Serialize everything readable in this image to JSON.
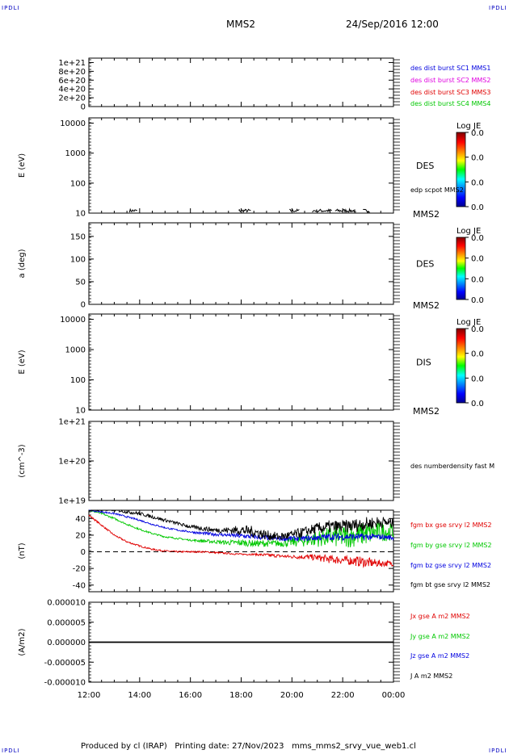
{
  "header": {
    "spacecraft": "MMS2",
    "datetime": "24/Sep/2016 12:00",
    "corner_tl": "IPDLI",
    "corner_tr": "IPDLI",
    "corner_bl": "IPDLI",
    "corner_br": "IPDLI"
  },
  "footer": {
    "produced_by": "Produced by cl (IRAP)",
    "printing_date": "Printing date: 27/Nov/2023",
    "script_name": "mms_mms2_srvy_vue_web1.cl"
  },
  "colors": {
    "red": "#e00000",
    "green": "#00c800",
    "blue": "#0000e0",
    "magenta": "#e000e0",
    "black": "#000000"
  },
  "chart_data": [
    {
      "id": "p1",
      "type": "line",
      "ylabel": "",
      "yticks": [
        "1e+21",
        "8e+20",
        "6e+20",
        "4e+20",
        "2e+20",
        "0"
      ],
      "ylim": [
        0,
        1.1e+21
      ],
      "series": [
        {
          "name": "des dist burst SC1 MMS1",
          "color": "#0000e0"
        },
        {
          "name": "des dist burst SC2 MMS2",
          "color": "#e000e0"
        },
        {
          "name": "des dist burst SC3 MMS3",
          "color": "#e00000"
        },
        {
          "name": "des dist burst SC4 MMS4",
          "color": "#00c800"
        }
      ],
      "zero_line": true
    },
    {
      "id": "p2",
      "type": "spectrogram",
      "ylabel": "E (eV)",
      "yscale": "log",
      "ylim": [
        10,
        15000
      ],
      "yticks": [
        "10000",
        "1000",
        "100",
        "10"
      ],
      "instrument_label": "DES",
      "spacecraft_label": "MMS2",
      "overlay_label": "edp scpot MMS2",
      "colorbar_title": "Log JE",
      "colorbar_ticks": [
        "0.0",
        "0.0",
        "0.0",
        "0.0"
      ],
      "overlay_bursts_hours": [
        [
          13.6,
          13.9
        ],
        [
          17.9,
          18.4
        ],
        [
          19.9,
          20.3
        ],
        [
          20.8,
          21.0
        ],
        [
          21.0,
          21.6
        ],
        [
          21.7,
          22.5
        ],
        [
          22.8,
          23.1
        ]
      ]
    },
    {
      "id": "p3",
      "type": "spectrogram",
      "ylabel": "a (deg)",
      "ylim": [
        0,
        180
      ],
      "yticks": [
        "150",
        "100",
        "50",
        "0"
      ],
      "instrument_label": "DES",
      "spacecraft_label": "MMS2",
      "colorbar_title": "Log JE",
      "colorbar_ticks": [
        "0.0",
        "0.0",
        "0.0",
        "0.0"
      ]
    },
    {
      "id": "p4",
      "type": "spectrogram",
      "ylabel": "E (eV)",
      "yscale": "log",
      "ylim": [
        10,
        15000
      ],
      "yticks": [
        "10000",
        "1000",
        "100",
        "10"
      ],
      "instrument_label": "DIS",
      "spacecraft_label": "MMS2",
      "colorbar_title": "Log JE",
      "colorbar_ticks": [
        "0.0",
        "0.0",
        "0.0",
        "0.0"
      ]
    },
    {
      "id": "p5",
      "type": "line",
      "ylabel": "(cm^-3)",
      "yscale": "log",
      "ylim": [
        1e+19,
        1e+21
      ],
      "yticks": [
        "1e+21",
        "1e+20",
        "1e+19"
      ],
      "series": [
        {
          "name": "des numberdensity fast M",
          "color": "#000000"
        }
      ]
    },
    {
      "id": "p6",
      "type": "line",
      "ylabel": "(nT)",
      "ylim": [
        -48,
        50
      ],
      "yticks": [
        "40",
        "20",
        "0",
        "-20",
        "-40"
      ],
      "zero_line": true,
      "series": [
        {
          "name": "fgm bx gse srvy l2 MMS2",
          "color": "#e00000",
          "x": [
            12.0,
            12.5,
            13.0,
            13.5,
            14.0,
            14.5,
            15.0,
            15.5,
            16.0,
            16.5,
            17.0,
            17.5,
            18.0,
            18.5,
            19.0,
            19.5,
            20.0,
            20.5,
            21.0,
            21.5,
            22.0,
            22.5,
            23.0,
            23.5,
            24.0
          ],
          "y": [
            44,
            32,
            20,
            12,
            7,
            3,
            1,
            0,
            0,
            0,
            -1,
            -2,
            -3,
            -3,
            -4,
            -5,
            -6,
            -6,
            -7,
            -9,
            -10,
            -11,
            -13,
            -14,
            -14
          ],
          "noise": [
            1,
            1,
            1,
            1,
            1,
            1,
            1,
            1,
            1,
            1,
            1,
            1,
            1,
            1,
            2,
            2,
            2,
            3,
            4,
            5,
            5,
            6,
            6,
            4,
            3
          ]
        },
        {
          "name": "fgm by gse srvy l2 MMS2",
          "color": "#00c800",
          "x": [
            12.0,
            12.5,
            13.0,
            13.5,
            14.0,
            14.5,
            15.0,
            15.5,
            16.0,
            16.5,
            17.0,
            17.5,
            18.0,
            18.5,
            19.0,
            19.5,
            20.0,
            20.5,
            21.0,
            21.5,
            22.0,
            22.5,
            23.0,
            23.5,
            24.0
          ],
          "y": [
            50,
            46,
            40,
            33,
            27,
            22,
            18,
            16,
            14,
            13,
            12,
            11,
            11,
            10,
            10,
            10,
            12,
            14,
            16,
            18,
            18,
            20,
            22,
            24,
            24
          ],
          "noise": [
            1,
            1,
            1,
            1,
            1,
            1,
            1,
            1,
            1,
            2,
            2,
            3,
            4,
            4,
            4,
            4,
            6,
            8,
            10,
            12,
            14,
            14,
            14,
            12,
            10
          ]
        },
        {
          "name": "fgm bz gse srvy l2 MMS2",
          "color": "#0000e0",
          "x": [
            12.0,
            12.5,
            13.0,
            13.5,
            14.0,
            14.5,
            15.0,
            15.5,
            16.0,
            16.5,
            17.0,
            17.5,
            18.0,
            18.5,
            19.0,
            19.5,
            20.0,
            20.5,
            21.0,
            21.5,
            22.0,
            22.5,
            23.0,
            23.5,
            24.0
          ],
          "y": [
            50,
            48,
            46,
            42,
            38,
            33,
            29,
            26,
            24,
            22,
            21,
            20,
            19,
            18,
            17,
            16,
            16,
            16,
            17,
            18,
            18,
            18,
            18,
            18,
            17
          ],
          "noise": [
            1,
            1,
            1,
            1,
            1,
            1,
            1,
            1,
            1,
            2,
            2,
            2,
            3,
            3,
            3,
            3,
            3,
            3,
            4,
            4,
            4,
            4,
            4,
            3,
            3
          ]
        },
        {
          "name": "fgm bt gse srvy l2 MMS2",
          "color": "#000000",
          "x": [
            12.0,
            12.5,
            13.0,
            13.5,
            14.0,
            14.5,
            15.0,
            15.5,
            16.0,
            16.5,
            17.0,
            17.5,
            18.0,
            18.5,
            19.0,
            19.5,
            20.0,
            20.5,
            21.0,
            21.5,
            22.0,
            22.5,
            23.0,
            23.5,
            24.0
          ],
          "y": [
            50,
            50,
            50,
            48,
            46,
            42,
            38,
            34,
            30,
            28,
            26,
            26,
            26,
            24,
            20,
            18,
            20,
            24,
            28,
            30,
            30,
            32,
            34,
            36,
            34
          ],
          "noise": [
            1,
            1,
            1,
            2,
            2,
            2,
            2,
            2,
            2,
            3,
            3,
            4,
            6,
            7,
            6,
            5,
            6,
            6,
            7,
            8,
            8,
            8,
            8,
            7,
            6
          ]
        }
      ]
    },
    {
      "id": "p7",
      "type": "line",
      "ylabel": "(A/m2)",
      "ylim": [
        -1e-05,
        1e-05
      ],
      "yticks": [
        "0.000010",
        "0.000005",
        "0.000000",
        "-0.000005",
        "-0.000010"
      ],
      "series": [
        {
          "name": "Jx gse A m2 MMS2",
          "color": "#e00000"
        },
        {
          "name": "Jy gse A m2 MMS2",
          "color": "#00c800"
        },
        {
          "name": "Jz gse A m2 MMS2",
          "color": "#0000e0"
        },
        {
          "name": "J A m2 MMS2",
          "color": "#000000"
        }
      ],
      "x": [
        12,
        24
      ],
      "y": [
        0,
        0
      ]
    }
  ],
  "xaxis": {
    "ticks": [
      "12:00",
      "14:00",
      "16:00",
      "18:00",
      "20:00",
      "22:00",
      "00:00"
    ],
    "range_hours": [
      12,
      24
    ]
  }
}
